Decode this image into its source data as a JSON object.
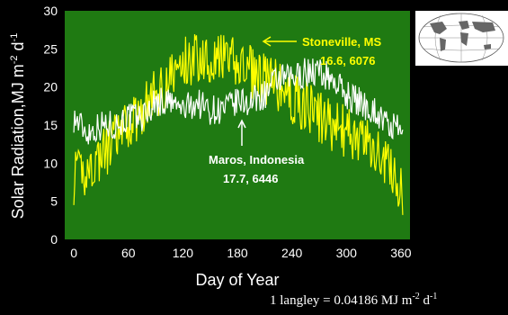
{
  "chart_data": {
    "type": "line",
    "xlabel": "Day of Year",
    "ylabel_main": "Solar Radiation,MJ m",
    "ylabel_sup1": "-2",
    "ylabel_mid": " d",
    "ylabel_sup2": "-1",
    "xlim": [
      -10,
      370
    ],
    "ylim": [
      0,
      30
    ],
    "xticks": [
      0,
      60,
      120,
      180,
      240,
      300,
      360
    ],
    "yticks": [
      0,
      5,
      10,
      15,
      20,
      25,
      30
    ],
    "xtick_labels": [
      "0",
      "60",
      "120",
      "180",
      "240",
      "300",
      "360"
    ],
    "ytick_labels": [
      "0",
      "5",
      "10",
      "15",
      "20",
      "25",
      "30"
    ],
    "plot_background": "#1f7a12",
    "series": [
      {
        "name": "Stoneville, MS",
        "color": "#ffff00",
        "anchor_points": [
          [
            0,
            8
          ],
          [
            15,
            9
          ],
          [
            30,
            11
          ],
          [
            45,
            13
          ],
          [
            60,
            15
          ],
          [
            75,
            17
          ],
          [
            90,
            19
          ],
          [
            105,
            21
          ],
          [
            120,
            23
          ],
          [
            135,
            24
          ],
          [
            150,
            24
          ],
          [
            165,
            23.5
          ],
          [
            180,
            23
          ],
          [
            195,
            22
          ],
          [
            210,
            21
          ],
          [
            225,
            20
          ],
          [
            240,
            18.5
          ],
          [
            255,
            17.5
          ],
          [
            270,
            16
          ],
          [
            285,
            15
          ],
          [
            300,
            14
          ],
          [
            315,
            13
          ],
          [
            330,
            12
          ],
          [
            345,
            10
          ],
          [
            355,
            8
          ],
          [
            362,
            5
          ]
        ]
      },
      {
        "name": "Maros, Indonesia",
        "color": "#ffffff",
        "anchor_points": [
          [
            0,
            16
          ],
          [
            15,
            14
          ],
          [
            30,
            15
          ],
          [
            45,
            15
          ],
          [
            60,
            16
          ],
          [
            75,
            16
          ],
          [
            90,
            18
          ],
          [
            105,
            18
          ],
          [
            120,
            17
          ],
          [
            135,
            18
          ],
          [
            150,
            17
          ],
          [
            165,
            17
          ],
          [
            180,
            18
          ],
          [
            195,
            18
          ],
          [
            210,
            19
          ],
          [
            225,
            21
          ],
          [
            240,
            21
          ],
          [
            255,
            22
          ],
          [
            270,
            22
          ],
          [
            285,
            21
          ],
          [
            300,
            19
          ],
          [
            315,
            18
          ],
          [
            330,
            17
          ],
          [
            345,
            15
          ],
          [
            362,
            14
          ]
        ]
      }
    ],
    "annotations": {
      "stoneville_name": "Stoneville, MS",
      "stoneville_stats": "16.6, 6076",
      "maros_name": "Maros, Indonesia",
      "maros_stats": "17.7, 6446"
    },
    "conversion_note": {
      "prefix": "1 langley = 0.04186 MJ m",
      "sup1": "-2",
      "mid": " d",
      "sup2": "-1"
    }
  }
}
